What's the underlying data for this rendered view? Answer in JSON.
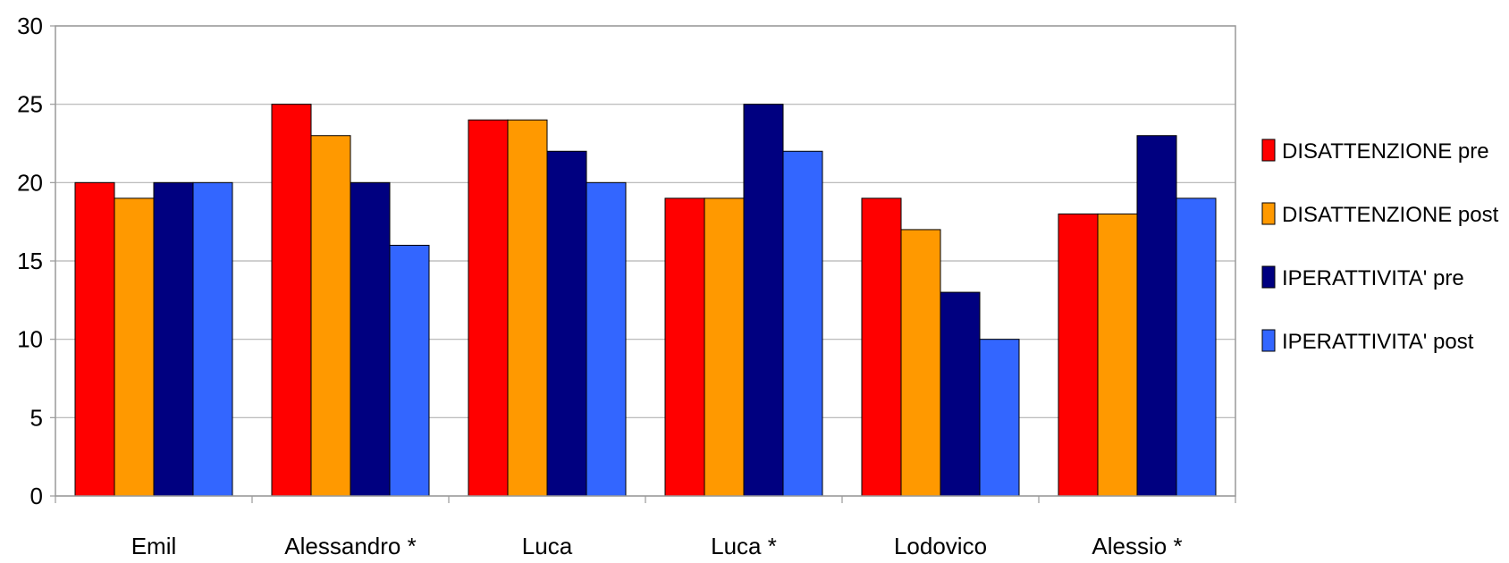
{
  "chart_data": {
    "type": "bar",
    "title": "",
    "xlabel": "",
    "ylabel": "",
    "ylim": [
      0,
      30
    ],
    "yticks": [
      0,
      5,
      10,
      15,
      20,
      25,
      30
    ],
    "grid": true,
    "legend_position": "right",
    "categories": [
      "Emil",
      "Alessandro *",
      "Luca",
      "Luca *",
      "Lodovico",
      "Alessio *"
    ],
    "series": [
      {
        "name": "DISATTENZIONE pre",
        "color": "#ff0000",
        "values": [
          20,
          25,
          24,
          19,
          19,
          18
        ]
      },
      {
        "name": "DISATTENZIONE post",
        "color": "#ff9900",
        "values": [
          19,
          23,
          24,
          19,
          17,
          18
        ]
      },
      {
        "name": "IPERATTIVITA' pre",
        "color": "#000080",
        "values": [
          20,
          20,
          22,
          25,
          13,
          23
        ]
      },
      {
        "name": "IPERATTIVITA' post",
        "color": "#3366ff",
        "values": [
          20,
          16,
          20,
          22,
          10,
          19
        ]
      }
    ]
  }
}
